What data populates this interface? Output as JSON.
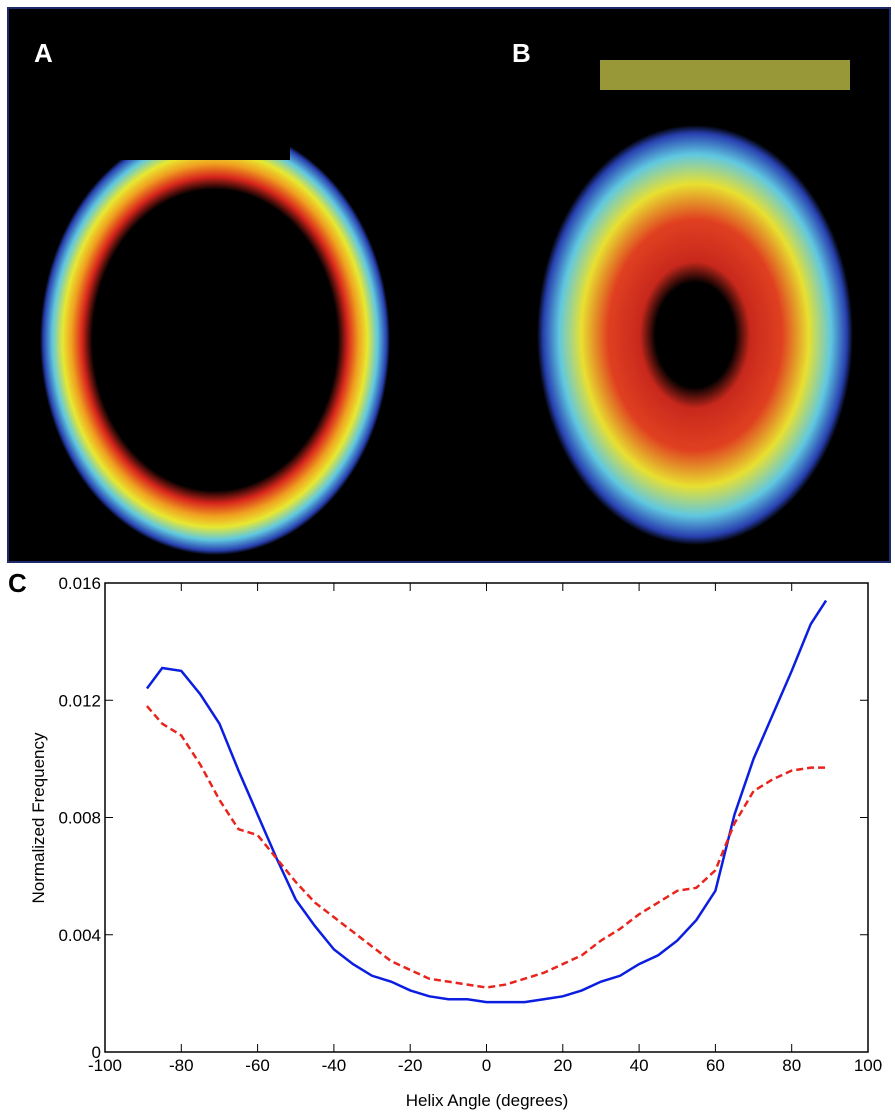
{
  "panel_labels": {
    "a": "A",
    "b": "B"
  },
  "chart_data": {
    "type": "line",
    "panel_label": "C",
    "x_label": "Helix Angle (degrees)",
    "y_label": "Normalized Frequency",
    "x": [
      -89,
      -85,
      -80,
      -75,
      -70,
      -65,
      -60,
      -55,
      -50,
      -45,
      -40,
      -35,
      -30,
      -25,
      -20,
      -15,
      -10,
      -5,
      0,
      5,
      10,
      15,
      20,
      25,
      30,
      35,
      40,
      45,
      50,
      55,
      60,
      65,
      70,
      75,
      80,
      85,
      89
    ],
    "series": [
      {
        "color": "#0b1ee0",
        "dash": false,
        "values": [
          0.0124,
          0.0131,
          0.013,
          0.0122,
          0.0112,
          0.0096,
          0.0081,
          0.0066,
          0.0052,
          0.0043,
          0.0035,
          0.003,
          0.0026,
          0.0024,
          0.0021,
          0.0019,
          0.0018,
          0.0018,
          0.0017,
          0.0017,
          0.0017,
          0.0018,
          0.0019,
          0.0021,
          0.0024,
          0.0026,
          0.003,
          0.0033,
          0.0038,
          0.0045,
          0.0055,
          0.0081,
          0.01,
          0.0115,
          0.013,
          0.0146,
          0.0154
        ]
      },
      {
        "color": "#e8241c",
        "dash": true,
        "values": [
          0.0118,
          0.0112,
          0.0108,
          0.0098,
          0.0086,
          0.0076,
          0.0074,
          0.0066,
          0.0058,
          0.0051,
          0.0046,
          0.0041,
          0.0036,
          0.0031,
          0.0028,
          0.0025,
          0.0024,
          0.0023,
          0.0022,
          0.0023,
          0.0025,
          0.0027,
          0.003,
          0.0033,
          0.0038,
          0.0042,
          0.0047,
          0.0051,
          0.0055,
          0.0056,
          0.0062,
          0.0078,
          0.0089,
          0.0093,
          0.0096,
          0.0097,
          0.0097
        ]
      }
    ],
    "xlim": [
      -100,
      100
    ],
    "xticks": [
      -100,
      -80,
      -60,
      -40,
      -20,
      0,
      20,
      40,
      60,
      80,
      100
    ],
    "ylim": [
      0,
      0.016
    ],
    "yticks": [
      0,
      0.004,
      0.008,
      0.012,
      0.016
    ]
  }
}
